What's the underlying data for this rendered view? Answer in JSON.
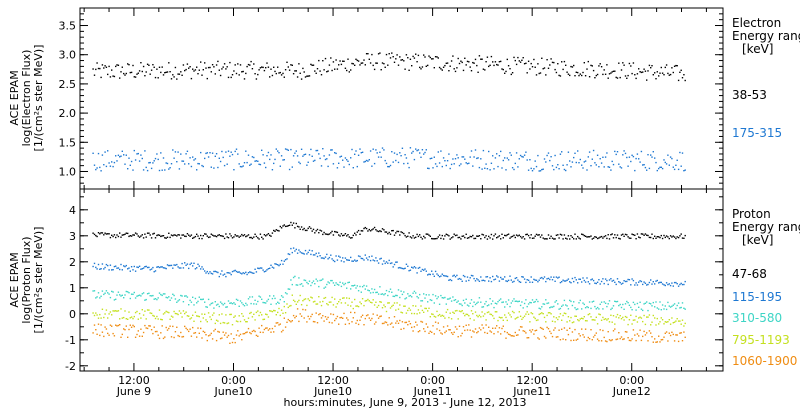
{
  "footer": "hours:minutes, June  9, 2013 - June 12, 2013",
  "time_ticks": [
    {
      "t": 12,
      "l1": "12:00",
      "l2": "June 9"
    },
    {
      "t": 24,
      "l1": "0:00",
      "l2": "June10"
    },
    {
      "t": 36,
      "l1": "12:00",
      "l2": "June10"
    },
    {
      "t": 48,
      "l1": "0:00",
      "l2": "June11"
    },
    {
      "t": 60,
      "l1": "12:00",
      "l2": "June11"
    },
    {
      "t": 72,
      "l1": "0:00",
      "l2": "June12"
    }
  ],
  "chart_data": [
    {
      "type": "scatter",
      "ylabel_lines": [
        "ACE EPAM",
        "log(Electron Flux)",
        "[1/(cm²s ster MeV)]"
      ],
      "ylim": [
        0.7,
        3.8
      ],
      "yticks": [
        1.0,
        1.5,
        2.0,
        2.5,
        3.0,
        3.5
      ],
      "xrange_hours": [
        5.5,
        83
      ],
      "legend": {
        "title": [
          "Electron",
          "Energy ranges",
          "[keV]"
        ]
      },
      "series": [
        {
          "name": "38-53",
          "color": "#000000",
          "baseline": [
            [
              7,
              2.72
            ],
            [
              20,
              2.75
            ],
            [
              32,
              2.74
            ],
            [
              40,
              2.9
            ],
            [
              48,
              2.88
            ],
            [
              58,
              2.82
            ],
            [
              70,
              2.75
            ],
            [
              78,
              2.68
            ]
          ],
          "spread": 0.15
        },
        {
          "name": "175-315",
          "color": "#1e78d2",
          "baseline": [
            [
              7,
              1.2
            ],
            [
              30,
              1.22
            ],
            [
              45,
              1.25
            ],
            [
              60,
              1.2
            ],
            [
              78,
              1.2
            ]
          ],
          "spread": 0.18
        }
      ]
    },
    {
      "type": "scatter",
      "ylabel_lines": [
        "ACE EPAM",
        "log(Proton Flux)",
        "[1/(cm²s ster MeV)]"
      ],
      "ylim": [
        -2.2,
        4.8
      ],
      "yticks": [
        -2,
        -1,
        0,
        1,
        2,
        3,
        4
      ],
      "xrange_hours": [
        5.5,
        83
      ],
      "legend": {
        "title": [
          "Proton",
          "Energy ranges",
          "[keV]"
        ]
      },
      "series": [
        {
          "name": "47-68",
          "color": "#000000",
          "baseline": [
            [
              7,
              3.05
            ],
            [
              28,
              3.0
            ],
            [
              30.5,
              3.5
            ],
            [
              34,
              3.2
            ],
            [
              38,
              3.0
            ],
            [
              40,
              3.3
            ],
            [
              46,
              3.0
            ],
            [
              78,
              3.0
            ]
          ],
          "spread": 0.1
        },
        {
          "name": "115-195",
          "color": "#1e78d2",
          "baseline": [
            [
              7,
              1.85
            ],
            [
              14,
              1.75
            ],
            [
              19,
              1.9
            ],
            [
              22,
              1.55
            ],
            [
              26,
              1.6
            ],
            [
              30,
              2.0
            ],
            [
              31,
              2.5
            ],
            [
              37,
              2.1
            ],
            [
              40,
              2.2
            ],
            [
              45,
              1.8
            ],
            [
              50,
              1.4
            ],
            [
              60,
              1.35
            ],
            [
              78,
              1.2
            ]
          ],
          "spread": 0.12
        },
        {
          "name": "310-580",
          "color": "#3dd5c5",
          "baseline": [
            [
              7,
              0.75
            ],
            [
              15,
              0.7
            ],
            [
              22,
              0.4
            ],
            [
              26,
              0.5
            ],
            [
              30,
              0.6
            ],
            [
              31,
              1.3
            ],
            [
              38,
              1.1
            ],
            [
              44,
              0.8
            ],
            [
              50,
              0.5
            ],
            [
              60,
              0.4
            ],
            [
              78,
              0.3
            ]
          ],
          "spread": 0.18
        },
        {
          "name": "795-1193",
          "color": "#c4e01f",
          "baseline": [
            [
              7,
              0.05
            ],
            [
              18,
              -0.05
            ],
            [
              24,
              -0.2
            ],
            [
              30,
              0.1
            ],
            [
              31,
              0.55
            ],
            [
              40,
              0.4
            ],
            [
              50,
              0.0
            ],
            [
              60,
              -0.1
            ],
            [
              78,
              -0.25
            ]
          ],
          "spread": 0.2
        },
        {
          "name": "1060-1900",
          "color": "#ef8c12",
          "baseline": [
            [
              7,
              -0.6
            ],
            [
              18,
              -0.7
            ],
            [
              24,
              -0.9
            ],
            [
              30,
              -0.4
            ],
            [
              31,
              0.0
            ],
            [
              40,
              -0.2
            ],
            [
              50,
              -0.6
            ],
            [
              60,
              -0.7
            ],
            [
              78,
              -0.9
            ]
          ],
          "spread": 0.25
        }
      ]
    }
  ]
}
